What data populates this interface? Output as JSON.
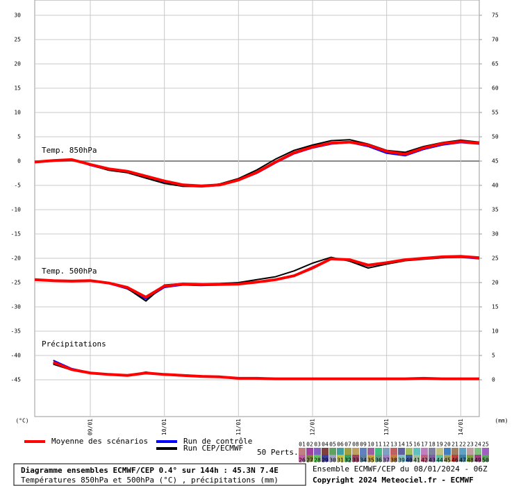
{
  "chart_data": {
    "type": "line",
    "x": [
      0,
      6,
      12,
      18,
      24,
      30,
      36,
      42,
      48,
      54,
      60,
      66,
      72,
      78,
      84,
      90,
      96,
      102,
      108,
      114,
      120,
      126,
      132,
      138,
      144
    ],
    "xlim": [
      0,
      144
    ],
    "xticks": [
      {
        "value": 18,
        "label": "09/01"
      },
      {
        "value": 42,
        "label": "10/01"
      },
      {
        "value": 66,
        "label": "11/01"
      },
      {
        "value": 90,
        "label": "12/01"
      },
      {
        "value": 114,
        "label": "13/01"
      },
      {
        "value": 138,
        "label": "14/01"
      }
    ],
    "ylim": [
      -52.57,
      33.14
    ],
    "yticks": [
      30,
      25,
      20,
      15,
      10,
      5,
      0,
      -5,
      -10,
      -15,
      -20,
      -25,
      -30,
      -35,
      -40,
      -45
    ],
    "y2lim": [
      -7.57,
      78.14
    ],
    "y2ticks": [
      75,
      70,
      65,
      60,
      55,
      50,
      45,
      40,
      35,
      30,
      25,
      20,
      15,
      10,
      5,
      0
    ],
    "y_unit": "(°C)",
    "y2_unit": "(mm)",
    "grid": true,
    "groups": [
      {
        "label": "Temp. 850hPa",
        "axis": "y",
        "series": [
          {
            "name": "Run de contrôle",
            "color": "#0000ff",
            "values": [
              -0.3,
              0.0,
              0.4,
              -0.9,
              -1.8,
              -2.3,
              -3.4,
              -4.3,
              -5.1,
              -5.3,
              -5.0,
              -4.0,
              -2.5,
              -0.4,
              1.5,
              2.7,
              3.5,
              3.8,
              3.0,
              1.6,
              1.1,
              2.4,
              3.3,
              3.8,
              3.5
            ]
          },
          {
            "name": "Run CEP/ECMWF",
            "color": "#000000",
            "values": [
              -0.2,
              0.1,
              0.2,
              -0.8,
              -1.9,
              -2.4,
              -3.5,
              -4.6,
              -5.2,
              -5.2,
              -4.7,
              -3.6,
              -1.8,
              0.4,
              2.2,
              3.3,
              4.2,
              4.4,
              3.5,
              2.2,
              1.8,
              3.0,
              3.8,
              4.3,
              3.9
            ]
          },
          {
            "name": "Moyenne des scénarios",
            "color": "#ff0000",
            "values": [
              -0.2,
              0.1,
              0.3,
              -0.7,
              -1.6,
              -2.1,
              -3.1,
              -4.1,
              -4.9,
              -5.1,
              -4.9,
              -3.9,
              -2.3,
              -0.2,
              1.7,
              2.9,
              3.7,
              3.9,
              3.3,
              2.0,
              1.4,
              2.7,
              3.6,
              4.0,
              3.7
            ]
          }
        ]
      },
      {
        "label": "Temp. 500hPa",
        "axis": "y",
        "series": [
          {
            "name": "Run de contrôle",
            "color": "#0000ff",
            "values": [
              -24.5,
              -24.7,
              -24.8,
              -24.7,
              -25.2,
              -26.3,
              -28.4,
              -26.0,
              -25.5,
              -25.6,
              -25.5,
              -25.4,
              -25.0,
              -24.5,
              -23.5,
              -21.8,
              -20.0,
              -20.5,
              -21.6,
              -21.0,
              -20.4,
              -20.1,
              -19.9,
              -19.8,
              -20.1
            ]
          },
          {
            "name": "Run CEP/ECMWF",
            "color": "#000000",
            "values": [
              -24.3,
              -24.5,
              -24.6,
              -24.5,
              -25.0,
              -26.2,
              -28.8,
              -25.5,
              -25.2,
              -25.3,
              -25.2,
              -25.0,
              -24.4,
              -23.8,
              -22.6,
              -21.0,
              -19.8,
              -20.6,
              -22.0,
              -21.2,
              -20.5,
              -20.2,
              -19.9,
              -19.7,
              -20.0
            ]
          },
          {
            "name": "Moyenne des scénarios",
            "color": "#ff0000",
            "values": [
              -24.4,
              -24.6,
              -24.7,
              -24.6,
              -25.1,
              -26.0,
              -28.0,
              -25.7,
              -25.3,
              -25.4,
              -25.4,
              -25.3,
              -24.9,
              -24.4,
              -23.6,
              -22.0,
              -20.1,
              -20.3,
              -21.4,
              -20.9,
              -20.3,
              -20.0,
              -19.7,
              -19.6,
              -19.9
            ]
          }
        ]
      },
      {
        "label": "Précipitations",
        "axis": "y2",
        "series": [
          {
            "name": "Run de contrôle",
            "color": "#0000ff",
            "values": [
              null,
              4.0,
              2.3,
              1.5,
              1.0,
              0.8,
              1.6,
              1.0,
              0.8,
              0.6,
              0.5,
              0.3,
              0.2,
              0.2,
              0.2,
              0.2,
              0.2,
              0.2,
              0.2,
              0.2,
              0.2,
              0.2,
              0.2,
              0.2,
              0.2
            ]
          },
          {
            "name": "Run CEP/ECMWF",
            "color": "#000000",
            "values": [
              null,
              3.2,
              2.0,
              1.3,
              1.2,
              1.0,
              1.3,
              1.2,
              1.0,
              0.8,
              0.6,
              0.4,
              0.3,
              0.2,
              0.2,
              0.2,
              0.2,
              0.2,
              0.2,
              0.2,
              0.2,
              0.3,
              0.2,
              0.2,
              0.2
            ]
          },
          {
            "name": "Moyenne des scénarios",
            "color": "#ff0000",
            "values": [
              null,
              3.6,
              2.1,
              1.4,
              1.1,
              0.9,
              1.4,
              1.1,
              0.9,
              0.7,
              0.6,
              0.3,
              0.3,
              0.2,
              0.2,
              0.2,
              0.2,
              0.2,
              0.2,
              0.2,
              0.2,
              0.3,
              0.2,
              0.2,
              0.2
            ]
          }
        ]
      }
    ],
    "perturbations": {
      "label": "50 Perts.",
      "names": [
        "01",
        "02",
        "03",
        "04",
        "05",
        "06",
        "07",
        "08",
        "09",
        "10",
        "11",
        "12",
        "13",
        "14",
        "15",
        "16",
        "17",
        "18",
        "19",
        "20",
        "21",
        "22",
        "23",
        "24",
        "25",
        "26",
        "27",
        "28",
        "29",
        "30",
        "31",
        "32",
        "33",
        "34",
        "35",
        "36",
        "37",
        "38",
        "39",
        "40",
        "41",
        "42",
        "43",
        "44",
        "45",
        "46",
        "47",
        "48",
        "49",
        "50"
      ],
      "colors": [
        "#c08080",
        "#a040a0",
        "#8060c0",
        "#804040",
        "#60a060",
        "#40a0a0",
        "#a0a040",
        "#c0a060",
        "#6080c0",
        "#a060a0",
        "#40c080",
        "#80a0c0",
        "#c06060",
        "#6060a0",
        "#a0c060",
        "#60c0c0",
        "#c080c0",
        "#8080a0",
        "#c0c080",
        "#4080c0",
        "#a08060",
        "#60a0c0",
        "#c0a0a0",
        "#80c080",
        "#a060c0",
        "#c060a0",
        "#808040",
        "#60c060",
        "#4040a0",
        "#a0a0c0",
        "#c0c040",
        "#40a060",
        "#a04060",
        "#6080a0",
        "#c0a040",
        "#60a080",
        "#a080c0",
        "#c08040",
        "#80c0c0",
        "#4060a0",
        "#a0c0a0",
        "#c06080",
        "#8060a0",
        "#60c0a0",
        "#a0a060",
        "#c04040",
        "#4080a0",
        "#80a040",
        "#a04080",
        "#60a060"
      ]
    },
    "footer": {
      "title": "Diagramme ensembles ECMWF/CEP 0.4° sur 144h : 45.3N 7.4E",
      "subtitle": "Températures 850hPa et 500hPa (°C) , précipitations (mm)",
      "run": "Ensemble ECMWF/CEP du 08/01/2024 - 06Z",
      "copyright": "Copyright 2024 Meteociel.fr - ECMWF"
    }
  }
}
